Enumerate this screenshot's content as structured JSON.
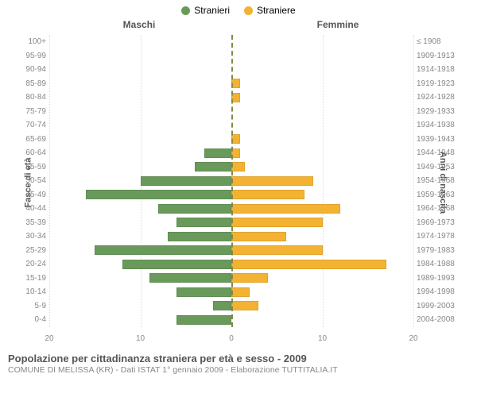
{
  "legend": {
    "male_label": "Stranieri",
    "female_label": "Straniere",
    "male_color": "#6a9a5b",
    "female_color": "#f4b233"
  },
  "chart": {
    "type": "population-pyramid",
    "male_header": "Maschi",
    "female_header": "Femmine",
    "y_axis_left_label": "Fasce di età",
    "y_axis_right_label": "Anni di nascita",
    "xmax": 20,
    "xticks": [
      20,
      10,
      0,
      10,
      20
    ],
    "bar_colors": {
      "male": "#6a9a5b",
      "female": "#f4b233"
    },
    "background_color": "#ffffff",
    "grid_color": "#dddddd",
    "centerline_color": "#888844",
    "label_fontsize": 10,
    "rows": [
      {
        "age": "100+",
        "birth": "≤ 1908",
        "m": 0,
        "f": 0
      },
      {
        "age": "95-99",
        "birth": "1909-1913",
        "m": 0,
        "f": 0
      },
      {
        "age": "90-94",
        "birth": "1914-1918",
        "m": 0,
        "f": 0
      },
      {
        "age": "85-89",
        "birth": "1919-1923",
        "m": 0,
        "f": 1
      },
      {
        "age": "80-84",
        "birth": "1924-1928",
        "m": 0,
        "f": 1
      },
      {
        "age": "75-79",
        "birth": "1929-1933",
        "m": 0,
        "f": 0
      },
      {
        "age": "70-74",
        "birth": "1934-1938",
        "m": 0,
        "f": 0
      },
      {
        "age": "65-69",
        "birth": "1939-1943",
        "m": 0,
        "f": 1
      },
      {
        "age": "60-64",
        "birth": "1944-1948",
        "m": 3,
        "f": 1
      },
      {
        "age": "55-59",
        "birth": "1949-1953",
        "m": 4,
        "f": 1.5
      },
      {
        "age": "50-54",
        "birth": "1954-1958",
        "m": 10,
        "f": 9
      },
      {
        "age": "45-49",
        "birth": "1959-1963",
        "m": 16,
        "f": 8
      },
      {
        "age": "40-44",
        "birth": "1964-1968",
        "m": 8,
        "f": 12
      },
      {
        "age": "35-39",
        "birth": "1969-1973",
        "m": 6,
        "f": 10
      },
      {
        "age": "30-34",
        "birth": "1974-1978",
        "m": 7,
        "f": 6
      },
      {
        "age": "25-29",
        "birth": "1979-1983",
        "m": 15,
        "f": 10
      },
      {
        "age": "20-24",
        "birth": "1984-1988",
        "m": 12,
        "f": 17
      },
      {
        "age": "15-19",
        "birth": "1989-1993",
        "m": 9,
        "f": 4
      },
      {
        "age": "10-14",
        "birth": "1994-1998",
        "m": 6,
        "f": 2
      },
      {
        "age": "5-9",
        "birth": "1999-2003",
        "m": 2,
        "f": 3
      },
      {
        "age": "0-4",
        "birth": "2004-2008",
        "m": 6,
        "f": 0
      }
    ]
  },
  "footer": {
    "title": "Popolazione per cittadinanza straniera per età e sesso - 2009",
    "subtitle": "COMUNE DI MELISSA (KR) - Dati ISTAT 1° gennaio 2009 - Elaborazione TUTTITALIA.IT"
  }
}
